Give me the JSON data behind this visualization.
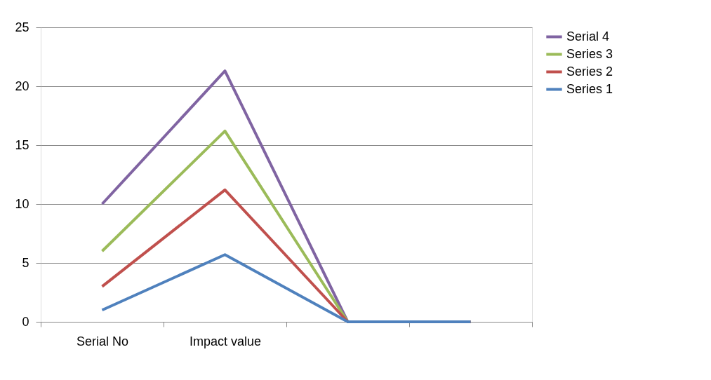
{
  "chart_data": {
    "type": "line",
    "categories": [
      "Serial No",
      "Impact value",
      null,
      null
    ],
    "series": [
      {
        "name": "Serial 4",
        "color": "#8064a2",
        "values": [
          10,
          21.3,
          0,
          0
        ]
      },
      {
        "name": "Series 3",
        "color": "#9bbb59",
        "values": [
          6,
          16.2,
          0,
          0
        ]
      },
      {
        "name": "Series 2",
        "color": "#c0504d",
        "values": [
          3,
          11.2,
          0,
          0
        ]
      },
      {
        "name": "Series 1",
        "color": "#4f81bd",
        "values": [
          1,
          5.7,
          0,
          0
        ]
      }
    ],
    "ylim": [
      0,
      25
    ],
    "yticks": [
      0,
      5,
      10,
      15,
      20,
      25
    ],
    "grid": "y",
    "legend": "right",
    "marker": "none",
    "line_style": "solid"
  }
}
